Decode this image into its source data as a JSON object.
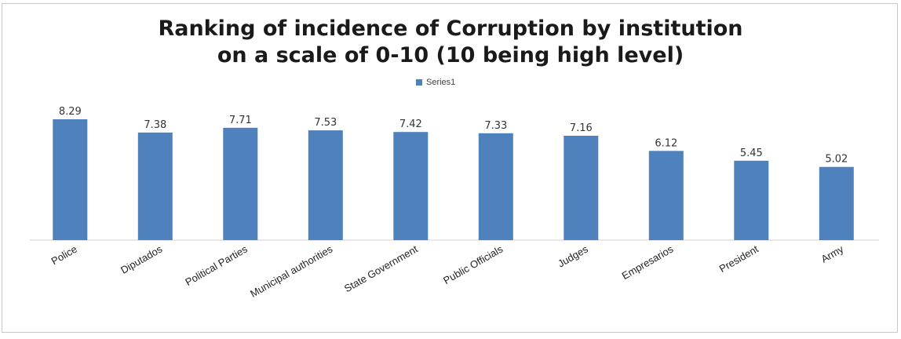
{
  "chart_data": {
    "type": "bar",
    "title_lines": [
      "Ranking of incidence of Corruption by institution",
      "on a scale of 0-10 (10 being high level)"
    ],
    "categories": [
      "Police",
      "Diputados",
      "Political Parties",
      "Municipal authorities",
      "State Government",
      "Public Officials",
      "Judges",
      "Empresarios",
      "President",
      "Army"
    ],
    "series": [
      {
        "name": "Series1",
        "color": "#4f81bd",
        "values": [
          8.29,
          7.38,
          7.71,
          7.53,
          7.42,
          7.33,
          7.16,
          6.12,
          5.45,
          5.02
        ]
      }
    ],
    "value_labels": [
      "8.29",
      "7.38",
      "7.71",
      "7.53",
      "7.42",
      "7.33",
      "7.16",
      "6.12",
      "5.45",
      "5.02"
    ],
    "ylim": [
      0,
      10
    ],
    "grid": false,
    "legend_position": "top-center"
  }
}
